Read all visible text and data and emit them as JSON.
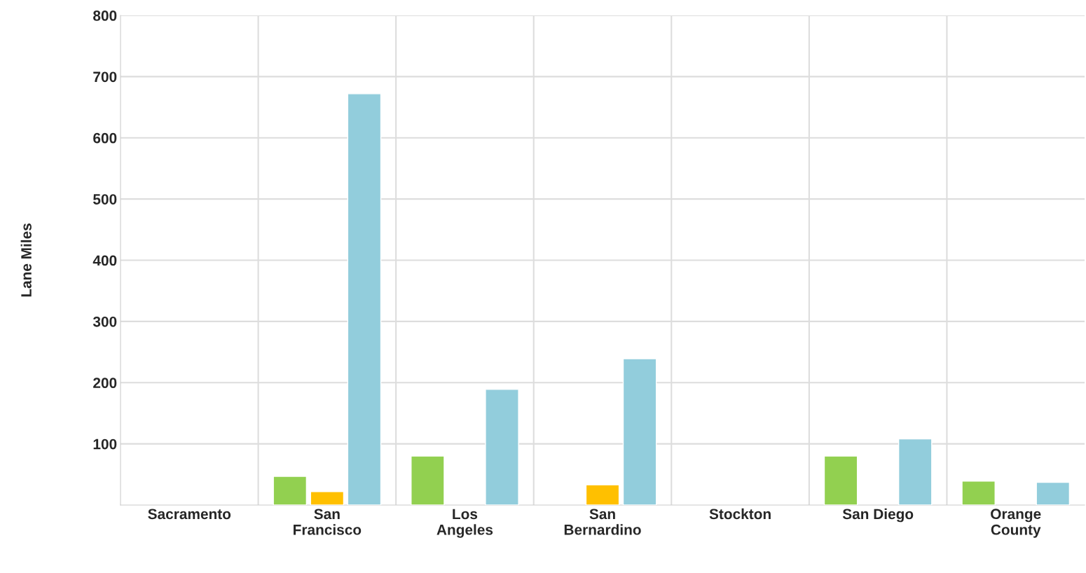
{
  "chart_data": {
    "type": "bar",
    "ylabel": "Lane Miles",
    "categories": [
      "Sacramento",
      "San\nFrancisco",
      "Los\nAngeles",
      "San\nBernardino",
      "Stockton",
      "San Diego",
      "Orange\nCounty"
    ],
    "series": [
      {
        "color": "#92d050",
        "values": [
          null,
          47,
          80,
          null,
          null,
          80,
          39
        ]
      },
      {
        "color": "#ffc000",
        "values": [
          null,
          22,
          null,
          33,
          null,
          null,
          null
        ]
      },
      {
        "color": "#92cddc",
        "values": [
          null,
          672,
          189,
          239,
          null,
          108,
          37
        ]
      }
    ],
    "ylim": [
      0,
      800
    ],
    "yticks": [
      100,
      200,
      300,
      400,
      500,
      600,
      700,
      800
    ],
    "grid": true,
    "legend": false
  }
}
